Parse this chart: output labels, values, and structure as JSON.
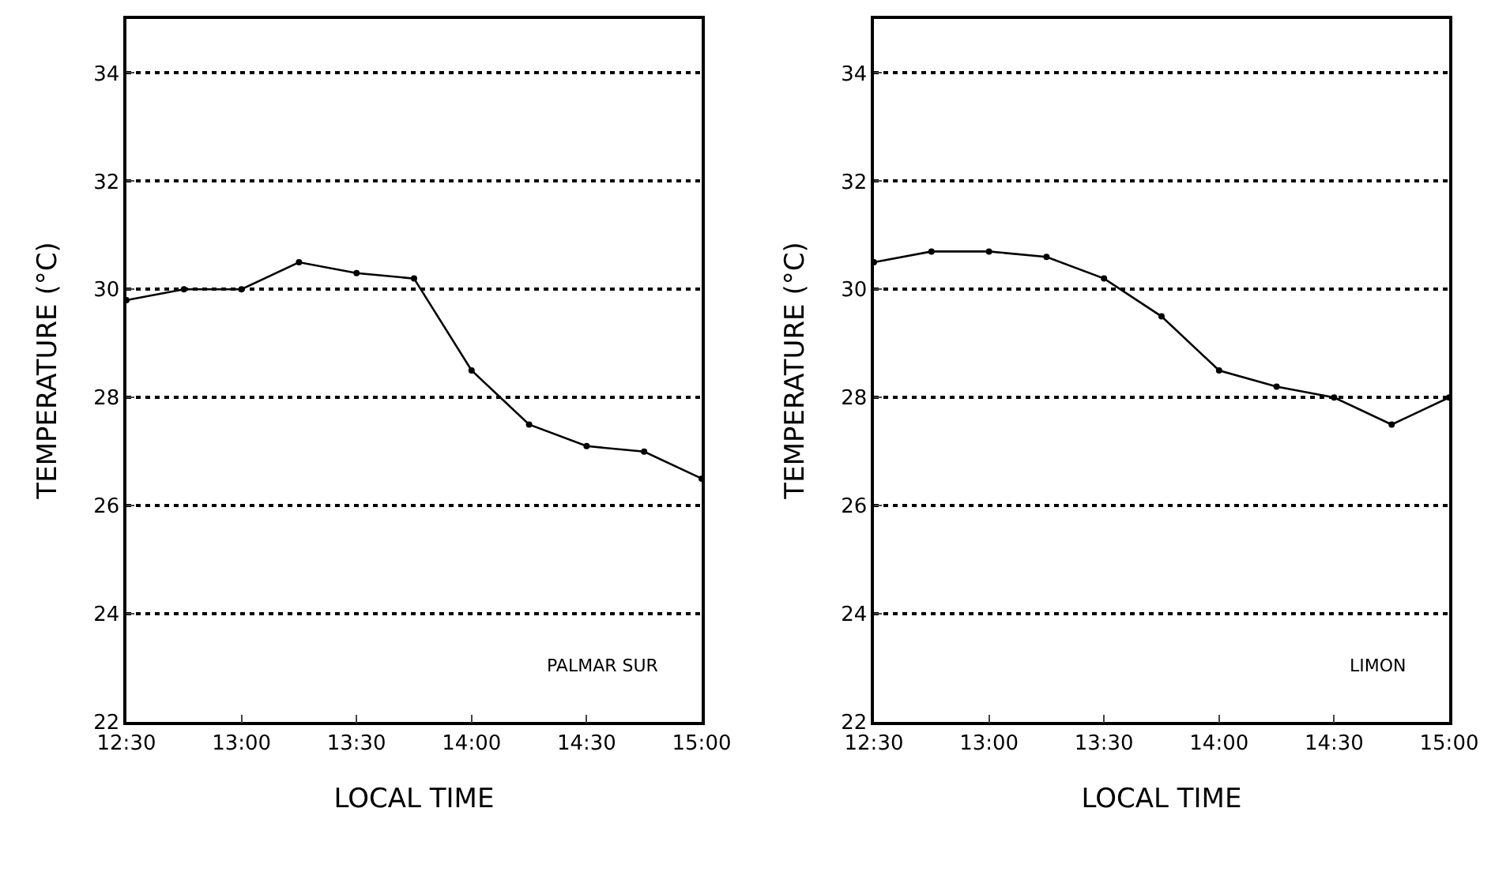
{
  "chart_data": [
    {
      "type": "line",
      "xlabel": "LOCAL TIME",
      "ylabel": "TEMPERATURE (°C)",
      "annotations": [
        "PALMAR SUR"
      ],
      "x": [
        12.5,
        12.75,
        13,
        13.25,
        13.5,
        13.75,
        14,
        14.25,
        14.5,
        14.75,
        15
      ],
      "series": [
        {
          "color": "#000000",
          "values": [
            29.8,
            30.0,
            30.0,
            30.5,
            30.3,
            30.2,
            28.5,
            27.5,
            27.1,
            27.0,
            26.5
          ]
        }
      ],
      "xlim": [
        12.5,
        15
      ],
      "xticks": [
        {
          "value": 12.5,
          "label": "12:30"
        },
        {
          "value": 13,
          "label": "13:00"
        },
        {
          "value": 13.5,
          "label": "13:30"
        },
        {
          "value": 14,
          "label": "14:00"
        },
        {
          "value": 14.5,
          "label": "14:30"
        },
        {
          "value": 15,
          "label": "15:00"
        }
      ],
      "ylim": [
        22,
        35
      ],
      "yticks": [
        22,
        24,
        26,
        28,
        30,
        32,
        34
      ],
      "grid": "y",
      "legend": false,
      "marker": "circle",
      "line_style": "solid"
    },
    {
      "type": "line",
      "xlabel": "LOCAL TIME",
      "ylabel": "TEMPERATURE (°C)",
      "annotations": [
        "LIMON"
      ],
      "x": [
        12.5,
        12.75,
        13,
        13.25,
        13.5,
        13.75,
        14,
        14.25,
        14.5,
        14.75,
        15
      ],
      "series": [
        {
          "color": "#000000",
          "values": [
            30.5,
            30.7,
            30.7,
            30.6,
            30.2,
            29.5,
            28.5,
            28.2,
            28.0,
            27.5,
            28.0
          ]
        }
      ],
      "xlim": [
        12.5,
        15
      ],
      "xticks": [
        {
          "value": 12.5,
          "label": "12:30"
        },
        {
          "value": 13,
          "label": "13:00"
        },
        {
          "value": 13.5,
          "label": "13:30"
        },
        {
          "value": 14,
          "label": "14:00"
        },
        {
          "value": 14.5,
          "label": "14:30"
        },
        {
          "value": 15,
          "label": "15:00"
        }
      ],
      "ylim": [
        22,
        35
      ],
      "yticks": [
        22,
        24,
        26,
        28,
        30,
        32,
        34
      ],
      "grid": "y",
      "legend": false,
      "marker": "circle",
      "line_style": "solid"
    }
  ]
}
